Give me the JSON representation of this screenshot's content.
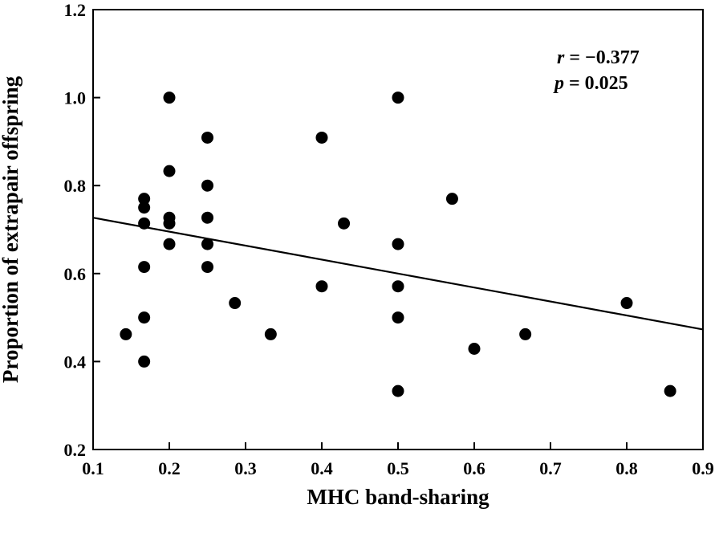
{
  "chart_data": {
    "type": "scatter",
    "xlabel": "MHC band-sharing",
    "ylabel": "Proportion of extrapair offspring",
    "xlim": [
      0.1,
      0.9
    ],
    "ylim": [
      0.2,
      1.2
    ],
    "xticks": [
      "0.1",
      "0.2",
      "0.3",
      "0.4",
      "0.5",
      "0.6",
      "0.7",
      "0.8",
      "0.9"
    ],
    "yticks": [
      "0.2",
      "0.4",
      "0.6",
      "0.8",
      "1.0",
      "1.2"
    ],
    "grid": false,
    "series": [
      {
        "points": [
          [
            0.143,
            0.462
          ],
          [
            0.167,
            0.77
          ],
          [
            0.167,
            0.75
          ],
          [
            0.167,
            0.714
          ],
          [
            0.167,
            0.615
          ],
          [
            0.167,
            0.5
          ],
          [
            0.167,
            0.4
          ],
          [
            0.2,
            1.0
          ],
          [
            0.2,
            0.833
          ],
          [
            0.2,
            0.727
          ],
          [
            0.2,
            0.714
          ],
          [
            0.2,
            0.667
          ],
          [
            0.25,
            0.909
          ],
          [
            0.25,
            0.8
          ],
          [
            0.25,
            0.727
          ],
          [
            0.25,
            0.667
          ],
          [
            0.25,
            0.615
          ],
          [
            0.286,
            0.533
          ],
          [
            0.333,
            0.462
          ],
          [
            0.4,
            0.909
          ],
          [
            0.4,
            0.571
          ],
          [
            0.429,
            0.714
          ],
          [
            0.5,
            1.0
          ],
          [
            0.5,
            0.667
          ],
          [
            0.5,
            0.571
          ],
          [
            0.5,
            0.5
          ],
          [
            0.5,
            0.333
          ],
          [
            0.571,
            0.77
          ],
          [
            0.6,
            0.429
          ],
          [
            0.667,
            0.462
          ],
          [
            0.8,
            0.533
          ],
          [
            0.857,
            0.333
          ]
        ]
      }
    ],
    "regression_line": {
      "x": [
        0.1,
        0.9
      ],
      "y": [
        0.727,
        0.473
      ]
    },
    "annotations": {
      "r_symbol": "r",
      "r_value": " = −0.377",
      "p_symbol": "p",
      "p_value": " = 0.025"
    }
  }
}
